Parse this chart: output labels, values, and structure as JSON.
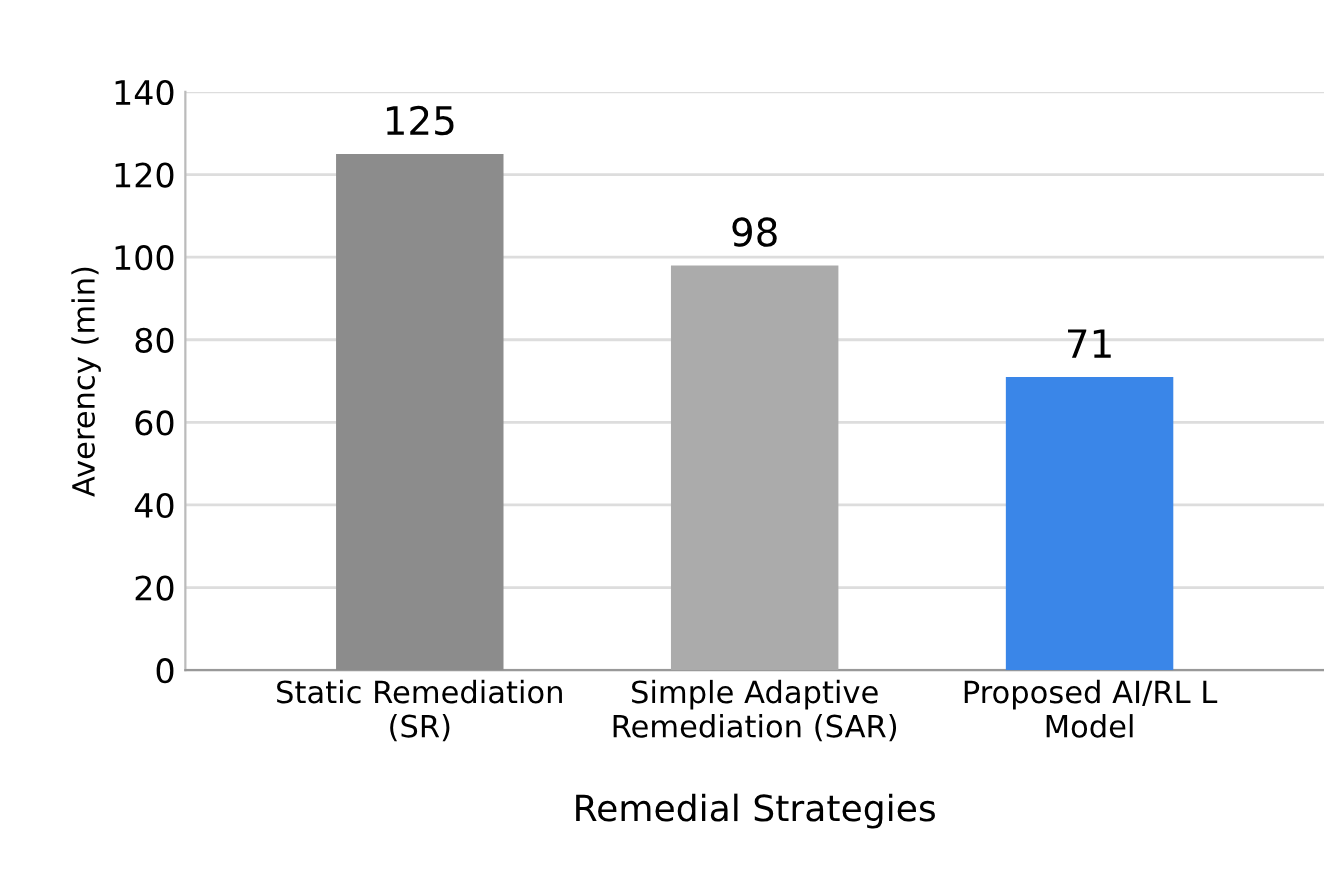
{
  "chart_data": {
    "type": "bar",
    "xlabel": "Remedial Strategies",
    "ylabel": "Averency (min)",
    "categories": [
      "Static Remediation\n(SR)",
      "Simple Adaptive\nRemediation (SAR)",
      "Proposed AI/RL L\nModel"
    ],
    "values": [
      125,
      98,
      71
    ],
    "colors": [
      "#8c8c8c",
      "#ababab",
      "#3a86e8"
    ],
    "ylim": [
      0,
      140
    ],
    "yticks": [
      0,
      20,
      40,
      60,
      80,
      100,
      120,
      140
    ],
    "grid": "y",
    "data_labels": true
  }
}
